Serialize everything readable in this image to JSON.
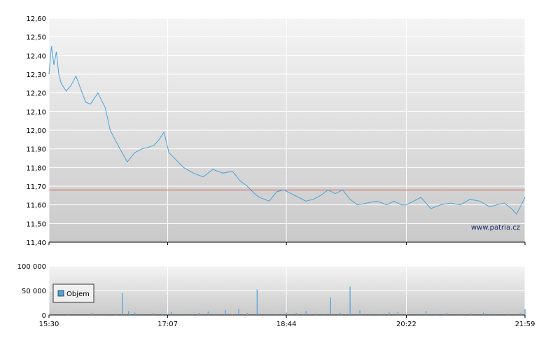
{
  "chart_data": [
    {
      "type": "line",
      "title": "",
      "xlabel": "",
      "ylabel": "",
      "x_ticks": [
        "15:30",
        "17:07",
        "18:44",
        "20:22",
        "21:59"
      ],
      "y_ticks": [
        "12,60",
        "12,50",
        "12,40",
        "12,30",
        "12,20",
        "12,10",
        "12,00",
        "11,90",
        "11,80",
        "11,70",
        "11,60",
        "11,50",
        "11,40"
      ],
      "ylim": [
        11.4,
        12.6
      ],
      "xlim": [
        "15:30",
        "21:59"
      ],
      "reference_line": 11.68,
      "reference_line_color": "#d9534f",
      "line_color": "#4aa3d8",
      "grid": true,
      "watermark": "www.patria.cz",
      "series": [
        {
          "x": [
            "15:30",
            "15:32",
            "15:34",
            "15:36",
            "15:38",
            "15:40",
            "15:44",
            "15:48",
            "15:52",
            "15:56",
            "16:00",
            "16:04",
            "16:10",
            "16:16",
            "16:20",
            "16:24",
            "16:28",
            "16:34",
            "16:40",
            "16:46",
            "16:52",
            "16:56",
            "17:00",
            "17:04",
            "17:08",
            "17:14",
            "17:20",
            "17:28",
            "17:36",
            "17:44",
            "17:52",
            "18:00",
            "18:06",
            "18:12",
            "18:18",
            "18:22",
            "18:30",
            "18:36",
            "18:42",
            "18:48",
            "18:54",
            "19:00",
            "19:06",
            "19:12",
            "19:18",
            "19:24",
            "19:30",
            "19:36",
            "19:42",
            "19:50",
            "19:58",
            "20:06",
            "20:12",
            "20:18",
            "20:22",
            "20:28",
            "20:34",
            "20:42",
            "20:50",
            "20:58",
            "21:06",
            "21:14",
            "21:22",
            "21:30",
            "21:36",
            "21:42",
            "21:48",
            "21:52",
            "21:56",
            "21:59"
          ],
          "values": [
            12.3,
            12.45,
            12.35,
            12.42,
            12.3,
            12.25,
            12.21,
            12.24,
            12.29,
            12.22,
            12.15,
            12.14,
            12.2,
            12.12,
            12.0,
            11.95,
            11.9,
            11.83,
            11.88,
            11.9,
            11.91,
            11.92,
            11.95,
            11.99,
            11.88,
            11.84,
            11.8,
            11.77,
            11.75,
            11.79,
            11.77,
            11.78,
            11.73,
            11.7,
            11.66,
            11.64,
            11.62,
            11.67,
            11.68,
            11.66,
            11.64,
            11.62,
            11.63,
            11.65,
            11.68,
            11.66,
            11.68,
            11.63,
            11.6,
            11.61,
            11.62,
            11.6,
            11.62,
            11.6,
            11.6,
            11.62,
            11.64,
            11.58,
            11.6,
            11.61,
            11.6,
            11.63,
            11.62,
            11.59,
            11.6,
            11.61,
            11.58,
            11.55,
            11.6,
            11.64
          ]
        }
      ]
    },
    {
      "type": "bar",
      "title": "",
      "xlabel": "",
      "ylabel": "",
      "y_ticks": [
        "100 000",
        "50 000",
        "0"
      ],
      "ylim": [
        0,
        100000
      ],
      "x_ticks": [
        "15:30",
        "17:07",
        "18:44",
        "20:22",
        "21:59"
      ],
      "legend": {
        "label": "Objem",
        "placement": "top-left"
      },
      "bar_color": "#4aa3d8",
      "series": [
        {
          "name": "Objem",
          "x": [
            "15:31",
            "15:45",
            "16:05",
            "16:15",
            "16:25",
            "16:30",
            "16:35",
            "16:40",
            "16:45",
            "16:55",
            "17:02",
            "17:10",
            "17:18",
            "17:25",
            "17:33",
            "17:40",
            "17:48",
            "17:54",
            "18:00",
            "18:05",
            "18:12",
            "18:20",
            "18:28",
            "18:36",
            "18:44",
            "18:52",
            "19:00",
            "19:08",
            "19:14",
            "19:20",
            "19:28",
            "19:36",
            "19:44",
            "19:52",
            "20:00",
            "20:08",
            "20:15",
            "20:22",
            "20:30",
            "20:38",
            "20:46",
            "20:55",
            "21:05",
            "21:15",
            "21:25",
            "21:35",
            "21:45",
            "21:55",
            "21:59"
          ],
          "values": [
            3000,
            2000,
            4000,
            3000,
            2000,
            45000,
            8000,
            5000,
            3000,
            4000,
            2000,
            6000,
            3000,
            2000,
            4000,
            7000,
            3000,
            10000,
            2000,
            12000,
            4000,
            52000,
            3000,
            2000,
            5000,
            4000,
            8000,
            3000,
            2000,
            36000,
            4000,
            58000,
            10000,
            3000,
            2000,
            5000,
            6000,
            2000,
            3000,
            8000,
            2000,
            4000,
            2000,
            3000,
            5000,
            2000,
            3000,
            4000,
            12000
          ]
        }
      ]
    }
  ]
}
